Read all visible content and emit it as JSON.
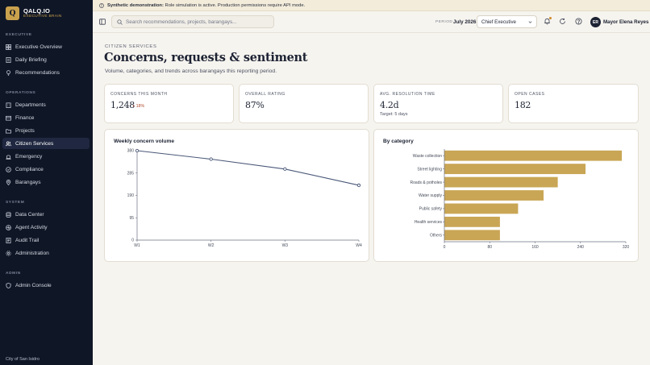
{
  "brand": {
    "logo_letter": "Q",
    "name": "QALQ.IO",
    "subtitle": "EXECUTIVE BRAIN"
  },
  "sidebar": {
    "sections": [
      {
        "label": "EXECUTIVE",
        "items": [
          {
            "label": "Executive Overview",
            "icon": "grid-icon"
          },
          {
            "label": "Daily Briefing",
            "icon": "document-icon"
          },
          {
            "label": "Recommendations",
            "icon": "lightbulb-icon"
          }
        ]
      },
      {
        "label": "OPERATIONS",
        "items": [
          {
            "label": "Departments",
            "icon": "building-icon"
          },
          {
            "label": "Finance",
            "icon": "wallet-icon"
          },
          {
            "label": "Projects",
            "icon": "folder-icon"
          },
          {
            "label": "Citizen Services",
            "icon": "users-icon",
            "active": true
          },
          {
            "label": "Emergency",
            "icon": "siren-icon"
          },
          {
            "label": "Compliance",
            "icon": "check-circle-icon"
          },
          {
            "label": "Barangays",
            "icon": "map-pin-icon"
          }
        ]
      },
      {
        "label": "SYSTEM",
        "items": [
          {
            "label": "Data Center",
            "icon": "database-icon"
          },
          {
            "label": "Agent Activity",
            "icon": "activity-icon"
          },
          {
            "label": "Audit Trail",
            "icon": "list-icon"
          },
          {
            "label": "Administration",
            "icon": "gear-icon"
          }
        ]
      },
      {
        "label": "ADMIN",
        "items": [
          {
            "label": "Admin Console",
            "icon": "shield-icon"
          }
        ]
      }
    ],
    "footer": "City of San Isidro"
  },
  "banner": {
    "bold": "Synthetic demonstration:",
    "text": " Role simulation is active. Production permissions require API mode."
  },
  "topbar": {
    "search_placeholder": "Search recommendations, projects, barangays...",
    "period_label": "PERIOD",
    "period_value": "July 2026",
    "role": "Chief Executive",
    "user_initials": "ER",
    "user_name": "Mayor Elena Reyes"
  },
  "page": {
    "eyebrow": "CITIZEN SERVICES",
    "title": "Concerns, requests & sentiment",
    "subtitle": "Volume, categories, and trends across barangays this reporting period."
  },
  "kpis": [
    {
      "label": "CONCERNS THIS MONTH",
      "value": "1,248",
      "delta": "+ 18%",
      "note": ""
    },
    {
      "label": "OVERALL RATING",
      "value": "87%",
      "delta": "",
      "note": ""
    },
    {
      "label": "AVG. RESOLUTION TIME",
      "value": "4.2d",
      "delta": "",
      "note": "Target: 5 days"
    },
    {
      "label": "OPEN CASES",
      "value": "182",
      "delta": "",
      "note": ""
    }
  ],
  "chart_data": [
    {
      "type": "line",
      "title": "Weekly concern volume",
      "x": [
        "W1",
        "W2",
        "W3",
        "W4"
      ],
      "series": [
        {
          "values": [
            380,
            344,
            302,
            233
          ]
        }
      ],
      "yticks": [
        0,
        95,
        190,
        285,
        380
      ],
      "ylim": [
        0,
        380
      ],
      "color": "#4a5878",
      "grid": false
    },
    {
      "type": "bar",
      "orientation": "horizontal",
      "title": "By category",
      "categories": [
        "Waste collection",
        "Street lighting",
        "Roads & potholes",
        "Water supply",
        "Public safety",
        "Health services",
        "Others"
      ],
      "values": [
        313,
        249,
        200,
        175,
        130,
        98,
        98
      ],
      "xticks": [
        0,
        80,
        160,
        240,
        320
      ],
      "xlim": [
        0,
        320
      ],
      "color": "#c9a655",
      "grid": false
    }
  ]
}
